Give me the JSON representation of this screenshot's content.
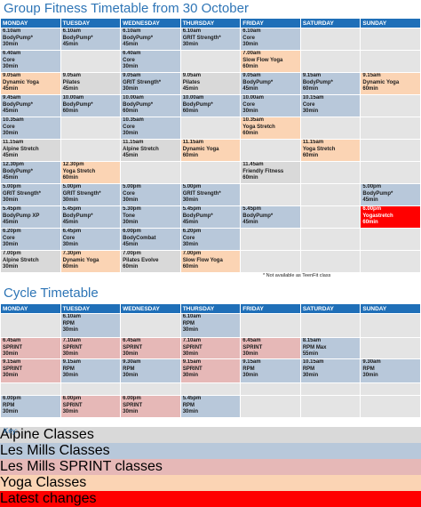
{
  "fitness": {
    "title": "Group Fitness Timetable from 30 October",
    "days": [
      "MONDAY",
      "TUESDAY",
      "WEDNESDAY",
      "THURSDAY",
      "FRIDAY",
      "SATURDAY",
      "SUNDAY"
    ],
    "rows": [
      [
        {
          "time": "6.10am",
          "name": "BodyPump*",
          "length": "30min",
          "color": "#b8c8da"
        },
        {
          "time": "6.10am",
          "name": "BodyPump*",
          "length": "45min",
          "color": "#b8c8da"
        },
        {
          "time": "6.10am",
          "name": "BodyPump*",
          "length": "45min",
          "color": "#b8c8da"
        },
        {
          "time": "6.10am",
          "name": "GRIT Strength*",
          "length": "30min",
          "color": "#b8c8da"
        },
        {
          "time": "6.10am",
          "name": "Core",
          "length": "30min",
          "color": "#b8c8da"
        },
        null,
        null
      ],
      [
        {
          "time": "6.40am",
          "name": "Core",
          "length": "30min",
          "color": "#b8c8da"
        },
        null,
        {
          "time": "6.40am",
          "name": "Core",
          "length": "30min",
          "color": "#b8c8da"
        },
        null,
        {
          "time": "7.00am",
          "name": "Slow Flow Yoga",
          "length": "60min",
          "color": "#fbd4b4"
        },
        null,
        null
      ],
      [
        {
          "time": "9.05am",
          "name": "Dynamic Yoga",
          "length": "45min",
          "color": "#fbd4b4"
        },
        {
          "time": "9.05am",
          "name": "Pilates",
          "length": "45min",
          "color": "#d9d9d9"
        },
        {
          "time": "9.05am",
          "name": "GRIT Strength*",
          "length": "30min",
          "color": "#b8c8da"
        },
        {
          "time": "9.05am",
          "name": "Pilates",
          "length": "45min",
          "color": "#d9d9d9"
        },
        {
          "time": "9.05am",
          "name": "BodyPump*",
          "length": "45min",
          "color": "#b8c8da"
        },
        {
          "time": "9.15am",
          "name": "BodyPump*",
          "length": "60min",
          "color": "#b8c8da"
        },
        {
          "time": "9.15am",
          "name": "Dynamic Yoga",
          "length": "60min",
          "color": "#fbd4b4"
        }
      ],
      [
        {
          "time": "9.45am",
          "name": "BodyPump*",
          "length": "45min",
          "color": "#b8c8da"
        },
        {
          "time": "10.00am",
          "name": "BodyPump*",
          "length": "60min",
          "color": "#b8c8da"
        },
        {
          "time": "10.00am",
          "name": "BodyPump*",
          "length": "60min",
          "color": "#b8c8da"
        },
        {
          "time": "10.00am",
          "name": "BodyPump*",
          "length": "60min",
          "color": "#b8c8da"
        },
        {
          "time": "10.00am",
          "name": "Core",
          "length": "30min",
          "color": "#b8c8da"
        },
        {
          "time": "10.15am",
          "name": "Core",
          "length": "30min",
          "color": "#b8c8da"
        },
        null
      ],
      [
        {
          "time": "10.35am",
          "name": "Core",
          "length": "30min",
          "color": "#b8c8da"
        },
        null,
        {
          "time": "10.35am",
          "name": "Core",
          "length": "30min",
          "color": "#b8c8da"
        },
        null,
        {
          "time": "10.35am",
          "name": "Yoga Stretch",
          "length": "60min",
          "color": "#fbd4b4"
        },
        null,
        null
      ],
      [
        {
          "time": "11.15am",
          "name": "Alpine Stretch",
          "length": "45min",
          "color": "#d9d9d9"
        },
        null,
        {
          "time": "11.15am",
          "name": "Alpine Stretch",
          "length": "45min",
          "color": "#d9d9d9"
        },
        {
          "time": "11.15am",
          "name": "Dynamic Yoga",
          "length": "60min",
          "color": "#fbd4b4"
        },
        null,
        {
          "time": "11.15am",
          "name": "Yoga Stretch",
          "length": "60min",
          "color": "#fbd4b4"
        },
        null
      ],
      [
        {
          "time": "12.30pm",
          "name": "BodyPump*",
          "length": "45min",
          "color": "#b8c8da"
        },
        {
          "time": "12.30pm",
          "name": "Yoga Stretch",
          "length": "60min",
          "color": "#fbd4b4"
        },
        null,
        null,
        {
          "time": "11.45am",
          "name": "Friendly Fitness",
          "length": "60min",
          "color": "#d9d9d9"
        },
        null,
        null
      ],
      [
        {
          "time": "5.00pm",
          "name": "GRIT Strength*",
          "length": "30min",
          "color": "#b8c8da"
        },
        {
          "time": "5.00pm",
          "name": "GRIT Strength*",
          "length": "30min",
          "color": "#b8c8da"
        },
        {
          "time": "5.00pm",
          "name": "Core",
          "length": "30min",
          "color": "#b8c8da"
        },
        {
          "time": "5.00pm",
          "name": "GRIT Strength*",
          "length": "30min",
          "color": "#b8c8da"
        },
        null,
        null,
        {
          "time": "5.00pm",
          "name": "BodyPump*",
          "length": "45min",
          "color": "#b8c8da"
        }
      ],
      [
        {
          "time": "5.45pm",
          "name": "BodyPump XP",
          "length": "45min",
          "color": "#b8c8da"
        },
        {
          "time": "5.45pm",
          "name": "BodyPump*",
          "length": "45min",
          "color": "#b8c8da"
        },
        {
          "time": "5.30pm",
          "name": "Tone",
          "length": "30min",
          "color": "#b8c8da"
        },
        {
          "time": "5.45pm",
          "name": "BodyPump*",
          "length": "45min",
          "color": "#b8c8da"
        },
        {
          "time": "5.45pm",
          "name": "BodyPump*",
          "length": "45min",
          "color": "#b8c8da"
        },
        null,
        {
          "time": "6.00pm",
          "name": "Yogastretch",
          "length": "60min",
          "color": "#ff0000"
        }
      ],
      [
        {
          "time": "6.20pm",
          "name": "Core",
          "length": "30min",
          "color": "#b8c8da"
        },
        {
          "time": "6.45pm",
          "name": "Core",
          "length": "30min",
          "color": "#b8c8da"
        },
        {
          "time": "6.00pm",
          "name": "BodyCombat",
          "length": "45min",
          "color": "#b8c8da"
        },
        {
          "time": "6.20pm",
          "name": "Core",
          "length": "30min",
          "color": "#b8c8da"
        },
        null,
        null,
        null
      ],
      [
        {
          "time": "7.00pm",
          "name": "Alpine Stretch",
          "length": "30min",
          "color": "#d9d9d9"
        },
        {
          "time": "7.30pm",
          "name": "Dynamic Yoga",
          "length": "60min",
          "color": "#fbd4b4"
        },
        {
          "time": "7.00pm",
          "name": "Pilates Evolve",
          "length": "60min",
          "color": "#d9d9d9"
        },
        {
          "time": "7.00pm",
          "name": "Slow Flow Yoga",
          "length": "60min",
          "color": "#fbd4b4"
        },
        null,
        null,
        null
      ]
    ],
    "note": "* Not available as TeenFit class"
  },
  "cycle": {
    "title": "Cycle Timetable",
    "days": [
      "MONDAY",
      "TUESDAY",
      "WEDNESDAY",
      "THURSDAY",
      "FRIDAY",
      "SATURDAY",
      "SUNDAY"
    ],
    "rows": [
      [
        null,
        {
          "time": "6.10am",
          "name": "RPM",
          "length": "30min",
          "color": "#b8c8da"
        },
        null,
        {
          "time": "6.10am",
          "name": "RPM",
          "length": "30min",
          "color": "#b8c8da"
        },
        null,
        null,
        null
      ],
      [
        {
          "time": "6.45am",
          "name": "SPRINT",
          "length": "30min",
          "color": "#e6b8b7"
        },
        {
          "time": "7.10am",
          "name": "SPRINT",
          "length": "30min",
          "color": "#e6b8b7"
        },
        {
          "time": "6.45am",
          "name": "SPRINT",
          "length": "30min",
          "color": "#e6b8b7"
        },
        {
          "time": "7.10am",
          "name": "SPRINT",
          "length": "30min",
          "color": "#e6b8b7"
        },
        {
          "time": "6.45am",
          "name": "SPRINT",
          "length": "30min",
          "color": "#e6b8b7"
        },
        {
          "time": "8.15am",
          "name": "RPM Max",
          "length": "55min",
          "color": "#b8c8da"
        },
        null
      ],
      [
        {
          "time": "9.15am",
          "name": "SPRINT",
          "length": "30min",
          "color": "#e6b8b7"
        },
        {
          "time": "9.15am",
          "name": "RPM",
          "length": "30min",
          "color": "#b8c8da"
        },
        {
          "time": "9.30am",
          "name": "RPM",
          "length": "30min",
          "color": "#b8c8da"
        },
        {
          "time": "9.15am",
          "name": "SPRINT",
          "length": "30min",
          "color": "#e6b8b7"
        },
        {
          "time": "9.15am",
          "name": "RPM",
          "length": "30min",
          "color": "#b8c8da"
        },
        {
          "time": "10.15am",
          "name": "RPM",
          "length": "30min",
          "color": "#b8c8da"
        },
        {
          "time": "9.30am",
          "name": "RPM",
          "length": "30min",
          "color": "#b8c8da"
        }
      ],
      [
        null,
        null,
        null,
        null,
        null,
        null,
        null
      ],
      [
        {
          "time": "6.00pm",
          "name": "RPM",
          "length": "30min",
          "color": "#b8c8da"
        },
        {
          "time": "6.00pm",
          "name": "SPRINT",
          "length": "30min",
          "color": "#e6b8b7"
        },
        {
          "time": "6.00pm",
          "name": "SPRINT",
          "length": "30min",
          "color": "#e6b8b7"
        },
        {
          "time": "5.45pm",
          "name": "RPM",
          "length": "30min",
          "color": "#b8c8da"
        },
        null,
        null,
        null
      ]
    ]
  },
  "key": {
    "label": "Key:",
    "items": [
      {
        "label": "Alpine Classes",
        "color": "#d9d9d9"
      },
      {
        "label": "Les Mills Classes",
        "color": "#b8c8da"
      },
      {
        "label": "Les Mills SPRINT classes",
        "color": "#e6b8b7"
      },
      {
        "label": "Yoga Classes",
        "color": "#fbd4b4"
      },
      {
        "label": "Latest changes",
        "color": "#ff0000"
      }
    ]
  }
}
